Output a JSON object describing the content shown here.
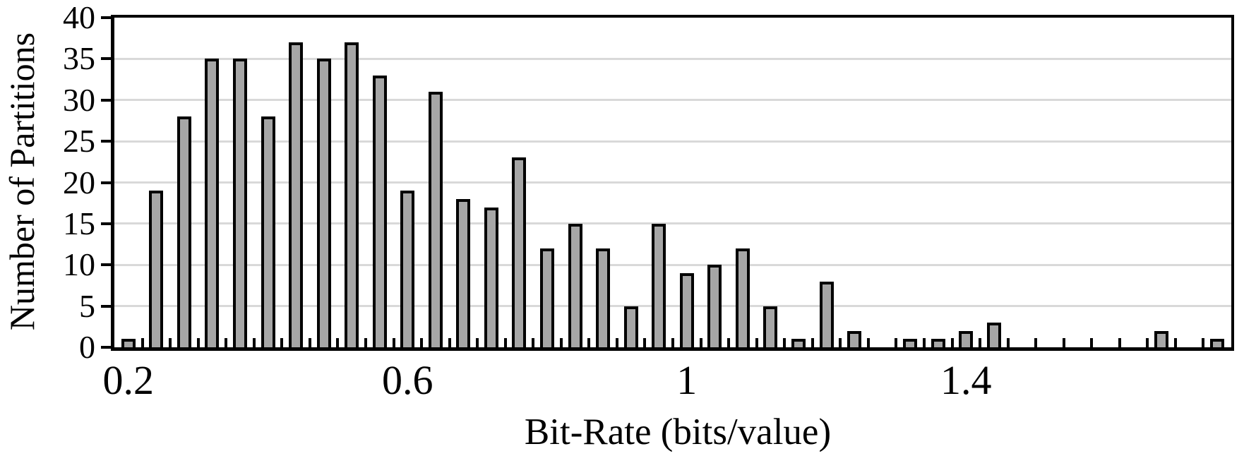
{
  "chart_data": {
    "type": "bar",
    "title": "",
    "xlabel": "Bit-Rate (bits/value)",
    "ylabel": "Number of Partitions",
    "categories": [
      0.2,
      0.24,
      0.28,
      0.32,
      0.36,
      0.4,
      0.44,
      0.48,
      0.52,
      0.56,
      0.6,
      0.64,
      0.68,
      0.72,
      0.76,
      0.8,
      0.84,
      0.88,
      0.92,
      0.96,
      1.0,
      1.04,
      1.08,
      1.12,
      1.16,
      1.2,
      1.24,
      1.28,
      1.32,
      1.36,
      1.4,
      1.44,
      1.48,
      1.52,
      1.56,
      1.6,
      1.64,
      1.68,
      1.72,
      1.76
    ],
    "values": [
      1,
      19,
      28,
      35,
      35,
      28,
      37,
      35,
      37,
      33,
      19,
      31,
      18,
      17,
      23,
      12,
      15,
      12,
      5,
      15,
      9,
      10,
      12,
      5,
      1,
      8,
      2,
      0,
      1,
      1,
      2,
      3,
      0,
      0,
      0,
      0,
      0,
      2,
      0,
      1
    ],
    "bin_width": 0.04,
    "ylim": [
      0,
      40
    ],
    "yticks": [
      0,
      5,
      10,
      15,
      20,
      25,
      30,
      35,
      40
    ],
    "ytick_labels": [
      "0",
      "5",
      "10",
      "15",
      "20",
      "25",
      "30",
      "35",
      "40"
    ],
    "xtick_slots": [
      0,
      10,
      20,
      30
    ],
    "xtick_labels": [
      "0.2",
      "0.6",
      "1",
      "1.4"
    ],
    "grid": true,
    "legend": "none",
    "style": {
      "bar_fill": "#a6a6a6",
      "bar_border": "#000000",
      "gridline_color": "#d9d9d9",
      "axis_color": "#000000",
      "text_color": "#000000",
      "background": "#ffffff"
    }
  }
}
